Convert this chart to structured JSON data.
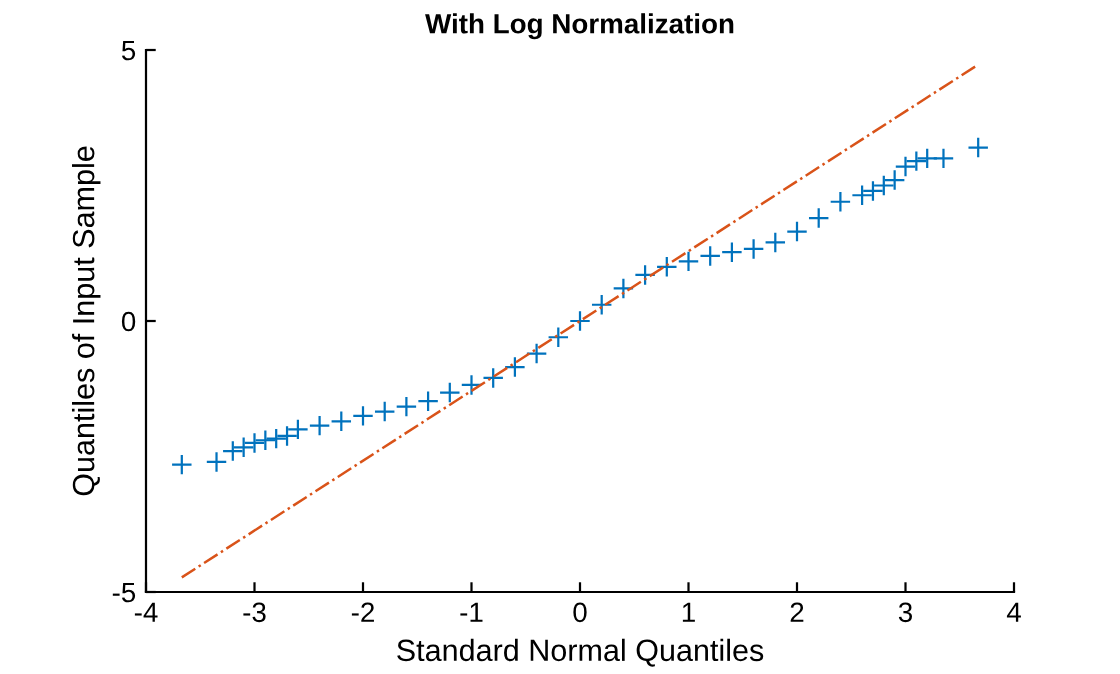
{
  "chart_data": {
    "type": "scatter",
    "title": "With Log Normalization",
    "xlabel": "Standard Normal Quantiles",
    "ylabel": "Quantiles of Input Sample",
    "xlim": [
      -4,
      4
    ],
    "ylim": [
      -5,
      5
    ],
    "xticks": [
      -4,
      -3,
      -2,
      -1,
      0,
      1,
      2,
      3,
      4
    ],
    "yticks": [
      -5,
      0,
      5
    ],
    "grid": false,
    "legend": false,
    "series": [
      {
        "color": "#0072bd",
        "marker": "cross",
        "x": [
          -3.67,
          -3.35,
          -3.2,
          -3.1,
          -3.0,
          -2.9,
          -2.8,
          -2.7,
          -2.6,
          -2.4,
          -2.2,
          -2.0,
          -1.8,
          -1.6,
          -1.4,
          -1.2,
          -1.0,
          -0.8,
          -0.6,
          -0.4,
          -0.2,
          0,
          0.2,
          0.4,
          0.6,
          0.8,
          1.0,
          1.2,
          1.4,
          1.6,
          1.8,
          2.0,
          2.2,
          2.4,
          2.6,
          2.7,
          2.8,
          2.9,
          3.0,
          3.1,
          3.2,
          3.35,
          3.67
        ],
        "values": [
          -2.65,
          -2.6,
          -2.4,
          -2.33,
          -2.25,
          -2.2,
          -2.17,
          -2.12,
          -2.0,
          -1.93,
          -1.85,
          -1.75,
          -1.67,
          -1.58,
          -1.48,
          -1.32,
          -1.18,
          -1.05,
          -0.85,
          -0.6,
          -0.3,
          0,
          0.3,
          0.6,
          0.85,
          1.0,
          1.1,
          1.2,
          1.27,
          1.33,
          1.45,
          1.65,
          1.9,
          2.2,
          2.32,
          2.4,
          2.5,
          2.6,
          2.85,
          2.95,
          3.0,
          3.0,
          3.2
        ]
      },
      {
        "type": "line",
        "color": "#d95319",
        "line_style": "dashed",
        "x": [
          -3.67,
          3.67
        ],
        "values": [
          -4.73,
          4.73
        ]
      }
    ]
  }
}
